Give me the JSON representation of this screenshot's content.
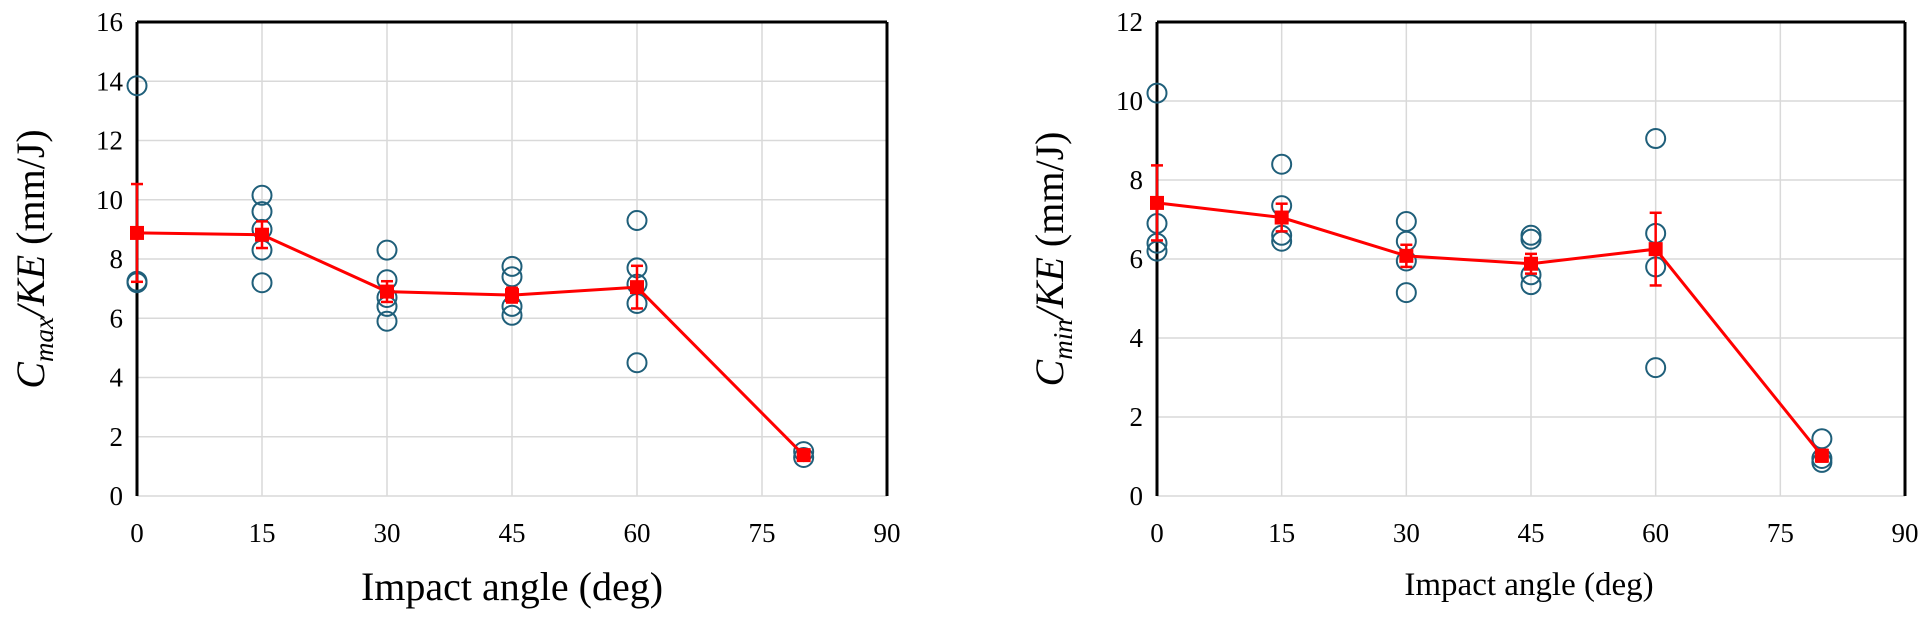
{
  "chart_data": [
    {
      "type": "scatter",
      "title": "",
      "xlabel": "Impact angle (deg)",
      "ylabel": {
        "main": "C",
        "sub": "max",
        "rest_i": "/KE",
        "rest_n": " (mm/J)"
      },
      "xlim": [
        0,
        90
      ],
      "ylim": [
        0,
        16
      ],
      "xticks": [
        0,
        15,
        30,
        45,
        60,
        75,
        90
      ],
      "yticks": [
        0,
        2,
        4,
        6,
        8,
        10,
        12,
        14,
        16
      ],
      "grid": true,
      "colors": {
        "points": "#1f5f7a",
        "mean": "#ff0000",
        "grid": "#d9d9d9"
      },
      "series": [
        {
          "style": "open-circles",
          "points": [
            [
              0,
              13.85
            ],
            [
              0,
              7.25
            ],
            [
              0,
              7.2
            ],
            [
              15,
              10.15
            ],
            [
              15,
              9.6
            ],
            [
              15,
              9.0
            ],
            [
              15,
              8.3
            ],
            [
              15,
              7.2
            ],
            [
              30,
              8.3
            ],
            [
              30,
              7.3
            ],
            [
              30,
              6.7
            ],
            [
              30,
              6.4
            ],
            [
              30,
              5.9
            ],
            [
              45,
              7.75
            ],
            [
              45,
              7.4
            ],
            [
              45,
              6.4
            ],
            [
              45,
              6.1
            ],
            [
              60,
              9.3
            ],
            [
              60,
              7.7
            ],
            [
              60,
              7.15
            ],
            [
              60,
              6.5
            ],
            [
              60,
              4.5
            ],
            [
              80,
              1.5
            ],
            [
              80,
              1.3
            ]
          ]
        },
        {
          "style": "line-square-errorbars",
          "points": [
            [
              0,
              8.88,
              1.65
            ],
            [
              15,
              8.82,
              0.45
            ],
            [
              30,
              6.9,
              0.35
            ],
            [
              45,
              6.78,
              0.25
            ],
            [
              60,
              7.05,
              0.72
            ],
            [
              80,
              1.38,
              0.12
            ]
          ]
        }
      ]
    },
    {
      "type": "scatter",
      "title": "",
      "xlabel": "Impact angle (deg)",
      "ylabel": {
        "main": "C",
        "sub": "min",
        "rest_i": "/KE",
        "rest_n": " (mm/J)"
      },
      "xlim": [
        0,
        90
      ],
      "ylim": [
        0,
        12
      ],
      "xticks": [
        0,
        15,
        30,
        45,
        60,
        75,
        90
      ],
      "yticks": [
        0,
        2,
        4,
        6,
        8,
        10,
        12
      ],
      "grid": true,
      "colors": {
        "points": "#1f5f7a",
        "mean": "#ff0000",
        "grid": "#d9d9d9"
      },
      "series": [
        {
          "style": "open-circles",
          "points": [
            [
              0,
              10.2
            ],
            [
              0,
              6.9
            ],
            [
              0,
              6.4
            ],
            [
              0,
              6.2
            ],
            [
              15,
              8.4
            ],
            [
              15,
              7.35
            ],
            [
              15,
              6.6
            ],
            [
              15,
              6.45
            ],
            [
              30,
              6.95
            ],
            [
              30,
              6.45
            ],
            [
              30,
              5.95
            ],
            [
              30,
              5.15
            ],
            [
              45,
              6.6
            ],
            [
              45,
              6.5
            ],
            [
              45,
              5.6
            ],
            [
              45,
              5.35
            ],
            [
              60,
              9.05
            ],
            [
              60,
              6.65
            ],
            [
              60,
              5.8
            ],
            [
              60,
              3.25
            ],
            [
              80,
              1.45
            ],
            [
              80,
              0.95
            ],
            [
              80,
              0.85
            ]
          ]
        },
        {
          "style": "line-square-errorbars",
          "points": [
            [
              0,
              7.42,
              0.95
            ],
            [
              15,
              7.05,
              0.35
            ],
            [
              30,
              6.08,
              0.28
            ],
            [
              45,
              5.88,
              0.25
            ],
            [
              60,
              6.25,
              0.92
            ],
            [
              80,
              1.02,
              0.15
            ]
          ]
        }
      ]
    }
  ]
}
